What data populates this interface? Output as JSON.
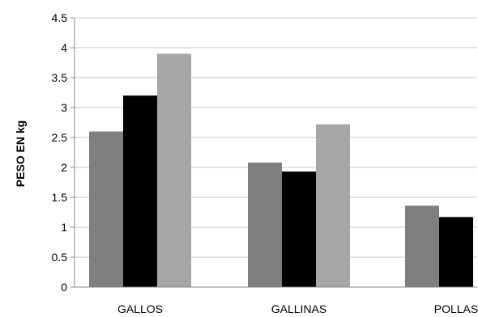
{
  "chart_data": {
    "type": "bar",
    "title": "",
    "xlabel": "",
    "ylabel": "PESO EN kg",
    "ylim": [
      0,
      4.5
    ],
    "yticks": [
      "0",
      "0.5",
      "1",
      "1.5",
      "2",
      "2.5",
      "3",
      "3.5",
      "4",
      "4.5"
    ],
    "categories": [
      "GALLOS",
      "GALLINAS",
      "POLLAS"
    ],
    "grid": true,
    "legend": "none",
    "series": [
      {
        "color": "#7f7f7f",
        "values": [
          2.6,
          2.08,
          1.36
        ]
      },
      {
        "color": "#000000",
        "values": [
          3.2,
          1.93,
          1.17
        ]
      },
      {
        "color": "#a6a6a6",
        "values": [
          3.9,
          2.72,
          null
        ]
      }
    ]
  }
}
